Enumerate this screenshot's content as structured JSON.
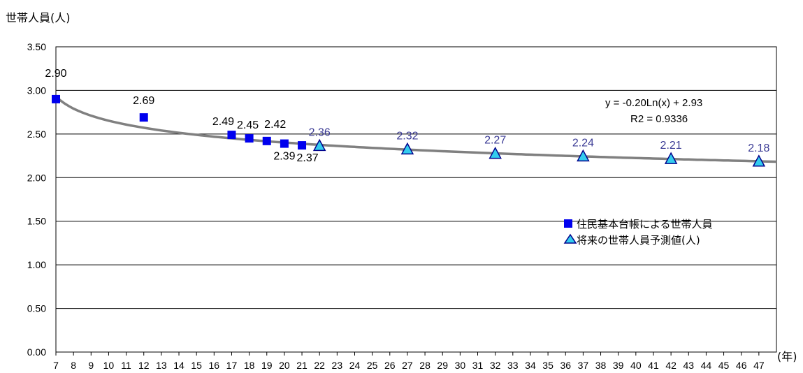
{
  "chart_data": {
    "type": "scatter",
    "ylabel": "世帯人員(人)",
    "xlabel": "(年)",
    "ylim": [
      0,
      3.5
    ],
    "yticks": [
      "0.00",
      "0.50",
      "1.00",
      "1.50",
      "2.00",
      "2.50",
      "3.00",
      "3.50"
    ],
    "xlim": [
      7,
      48
    ],
    "xticks": [
      7,
      8,
      9,
      10,
      11,
      12,
      13,
      14,
      15,
      16,
      17,
      18,
      19,
      20,
      21,
      22,
      23,
      24,
      25,
      26,
      27,
      28,
      29,
      30,
      31,
      32,
      33,
      34,
      35,
      36,
      37,
      38,
      39,
      40,
      41,
      42,
      43,
      44,
      45,
      46,
      47
    ],
    "grid": true,
    "legend_position": "center-right",
    "series": [
      {
        "name": "住民基本台帳による世帯人員",
        "marker": "square",
        "color": "#0000ee",
        "label_color": "#000000",
        "x": [
          7,
          12,
          17,
          18,
          19,
          20,
          21
        ],
        "values": [
          2.9,
          2.69,
          2.49,
          2.45,
          2.42,
          2.39,
          2.37
        ],
        "labels": [
          "2.90",
          "2.69",
          "2.49",
          "2.45",
          "2.42",
          "2.39",
          "2.37"
        ]
      },
      {
        "name": "将来の世帯人員予測値(人)",
        "marker": "triangle",
        "color": "#33ccee",
        "label_color": "#3b3b95",
        "x": [
          22,
          27,
          32,
          37,
          42,
          47
        ],
        "values": [
          2.36,
          2.32,
          2.27,
          2.24,
          2.21,
          2.18
        ],
        "labels": [
          "2.36",
          "2.32",
          "2.27",
          "2.24",
          "2.21",
          "2.18"
        ]
      }
    ],
    "trendline": {
      "type": "logarithmic",
      "color": "#808080",
      "equation": "y = -0.20Ln(x) + 2.93",
      "r2": "R2 = 0.9336"
    }
  }
}
